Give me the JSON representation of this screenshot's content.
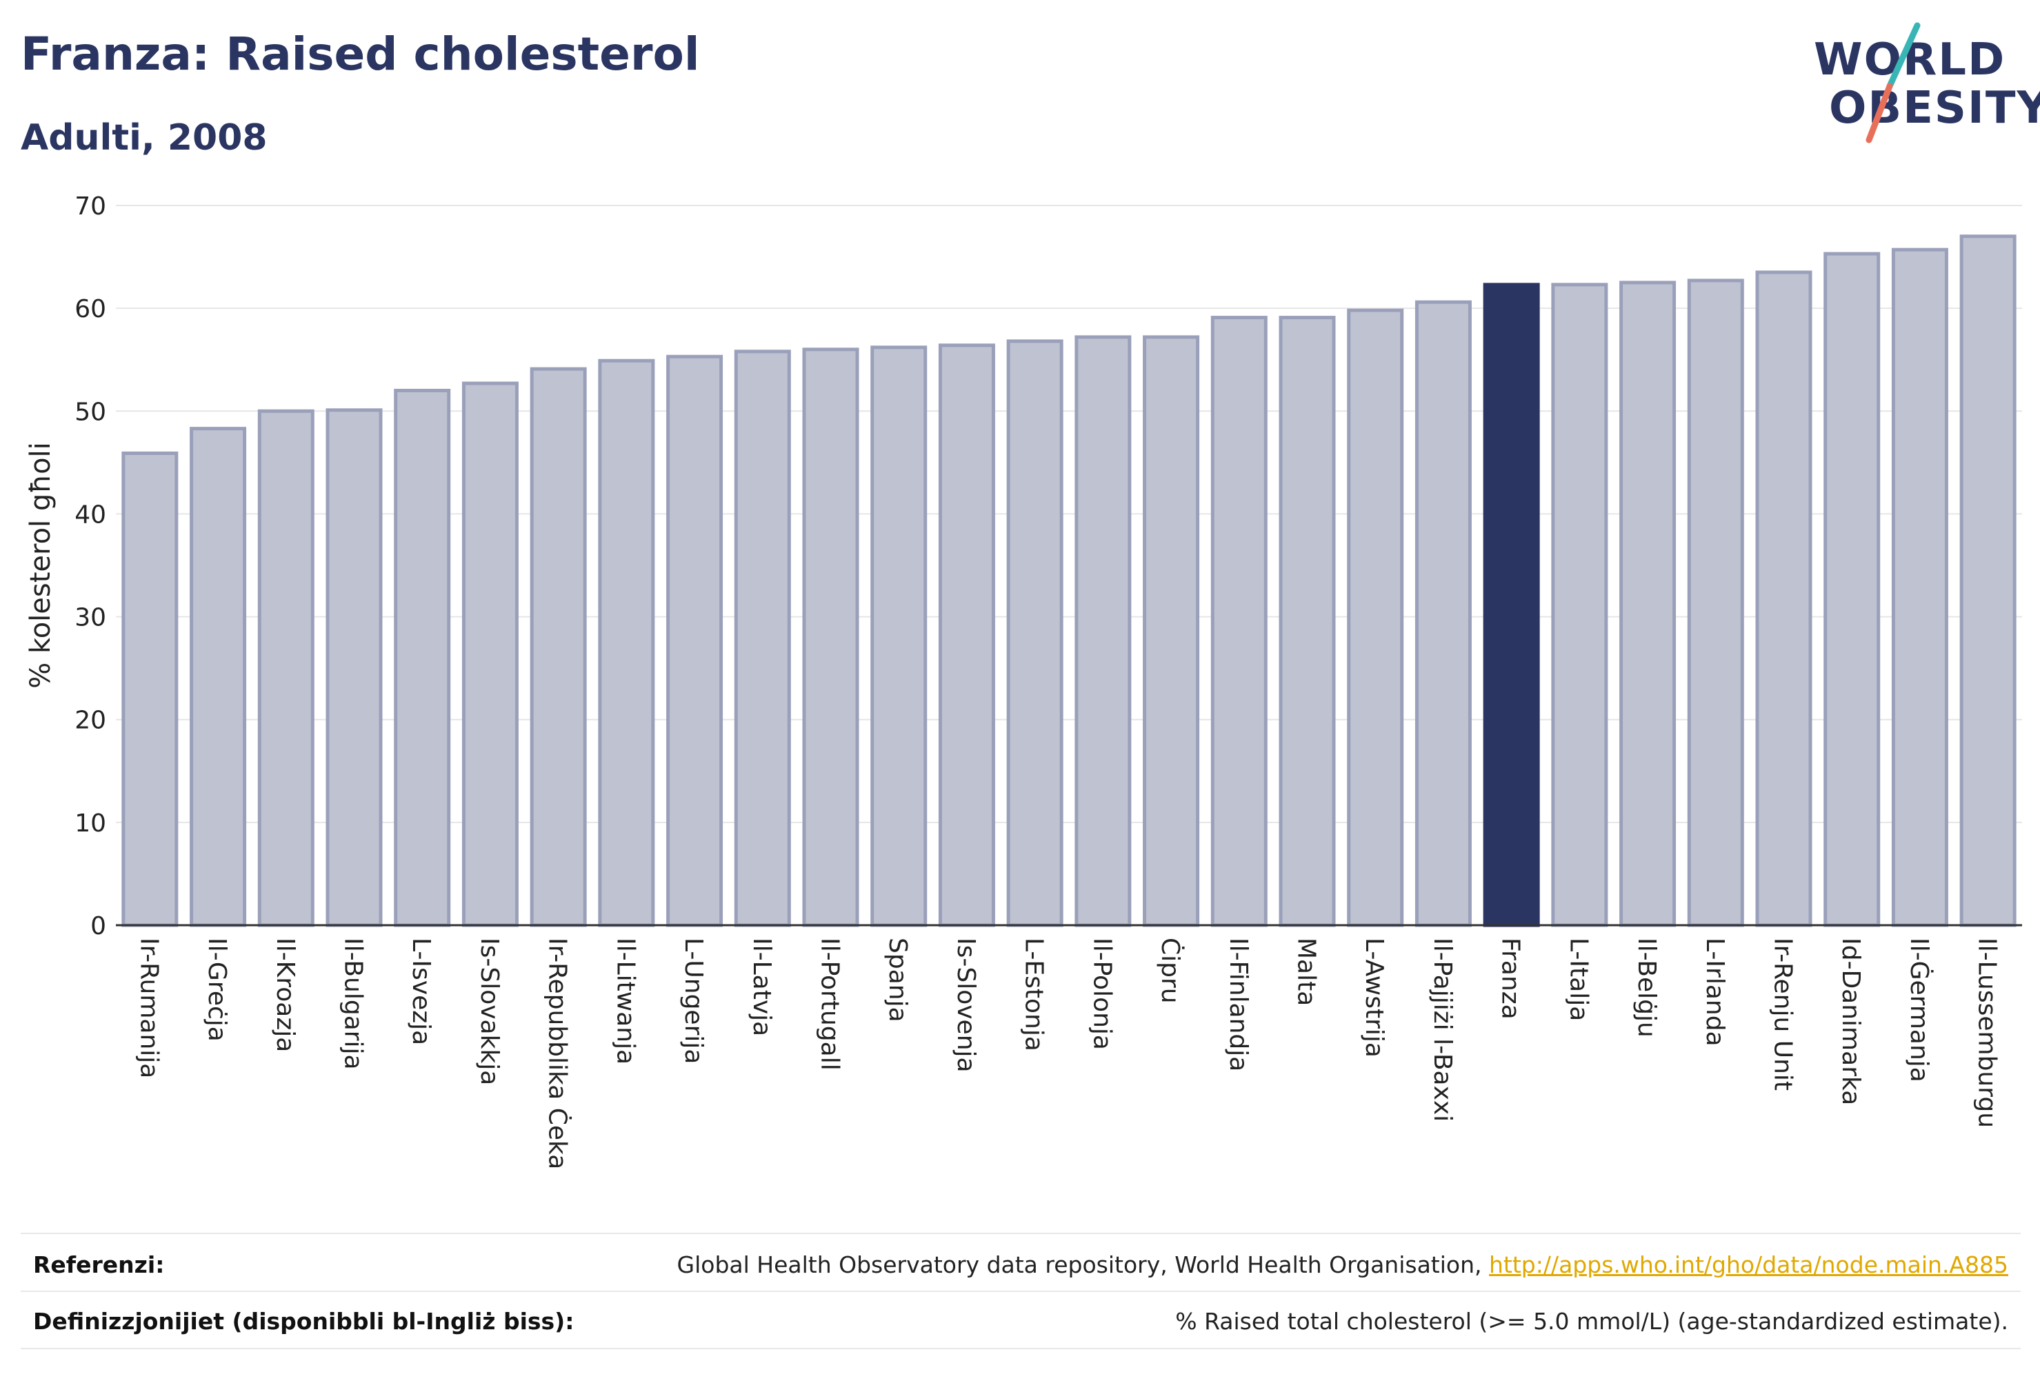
{
  "header": {
    "title": "Franza: Raised cholesterol",
    "subtitle": "Adulti, 2008"
  },
  "logo": {
    "line1": "WORLD",
    "line2": "OBESITY",
    "colors": {
      "text": "#2b3562",
      "slash_top": "#3ab5b5",
      "slash_bottom": "#e8705a"
    }
  },
  "chart_data": {
    "type": "bar",
    "title": "Franza: Raised cholesterol",
    "subtitle": "Adulti, 2008",
    "ylabel": "% kolesterol għoli",
    "xlabel": "",
    "ylim": [
      0,
      70
    ],
    "yticks": [
      0,
      10,
      20,
      30,
      40,
      50,
      60,
      70
    ],
    "grid": true,
    "highlight": "Franza",
    "colors": {
      "bar": "#bfc3d1",
      "bar_edge": "#9aa0ba",
      "highlight": "#2b3562"
    },
    "categories": [
      "Ir-Rumanija",
      "Il-Greċja",
      "Il-Kroazja",
      "Il-Bulgarija",
      "L-Isvezja",
      "Is-Slovakkja",
      "Ir-Repubblika Ċeka",
      "Il-Litwanja",
      "L-Ungerija",
      "Il-Latvja",
      "Il-Portugall",
      "Spanja",
      "Is-Slovenja",
      "L-Estonja",
      "Il-Polonja",
      "Ċipru",
      "Il-Finlandja",
      "Malta",
      "L-Awstrija",
      "Il-Pajjiżi l-Baxxi",
      "Franza",
      "L-Italja",
      "Il-Belġju",
      "L-Irlanda",
      "Ir-Renju Unit",
      "Id-Danimarka",
      "Il-Ġermanja",
      "Il-Lussemburgu"
    ],
    "values": [
      45.9,
      48.3,
      50.0,
      50.1,
      52.0,
      52.7,
      54.1,
      54.9,
      55.3,
      55.8,
      56.0,
      56.2,
      56.4,
      56.8,
      57.2,
      57.2,
      59.1,
      59.1,
      59.8,
      60.6,
      62.3,
      62.3,
      62.5,
      62.7,
      63.5,
      65.3,
      65.7,
      67.0
    ]
  },
  "footer": {
    "references_label": "Referenzi:",
    "references_text": "Global Health Observatory data repository, World Health Organisation, ",
    "references_link": "http://apps.who.int/gho/data/node.main.A885",
    "definitions_label": "Definizzjonijiet (disponibbli bl-Ingliż biss):",
    "definitions_text": "% Raised total cholesterol (>= 5.0 mmol/L) (age-standardized estimate)."
  }
}
